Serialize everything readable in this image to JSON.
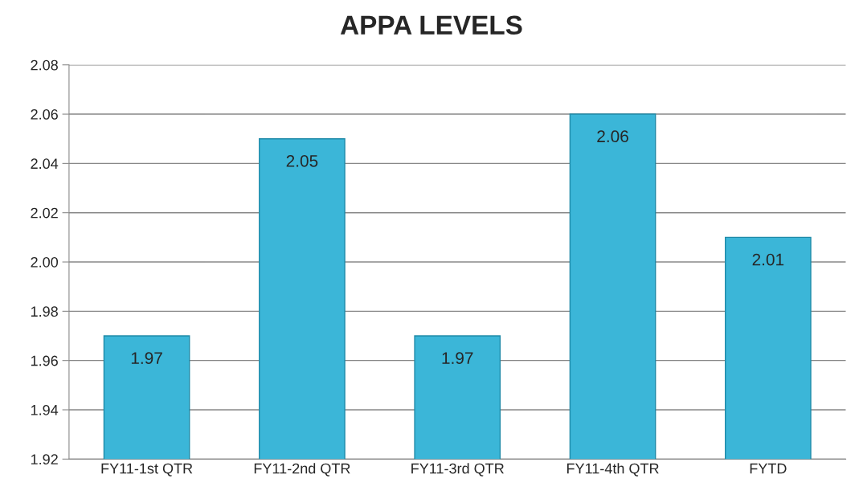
{
  "chart_data": {
    "type": "bar",
    "title": "APPA LEVELS",
    "categories": [
      "FY11-1st QTR",
      "FY11-2nd QTR",
      "FY11-3rd QTR",
      "FY11-4th QTR",
      "FYTD"
    ],
    "values": [
      1.97,
      2.05,
      1.97,
      2.06,
      2.01
    ],
    "color": "#3bb6d8",
    "ylim": [
      1.92,
      2.08
    ],
    "yticks": [
      1.92,
      1.94,
      1.96,
      1.98,
      {
        "value": 2.0,
        "label": "2.00"
      },
      2.02,
      2.04,
      2.06,
      2.08
    ],
    "grid": "y",
    "legend": false,
    "data_labels": true
  }
}
